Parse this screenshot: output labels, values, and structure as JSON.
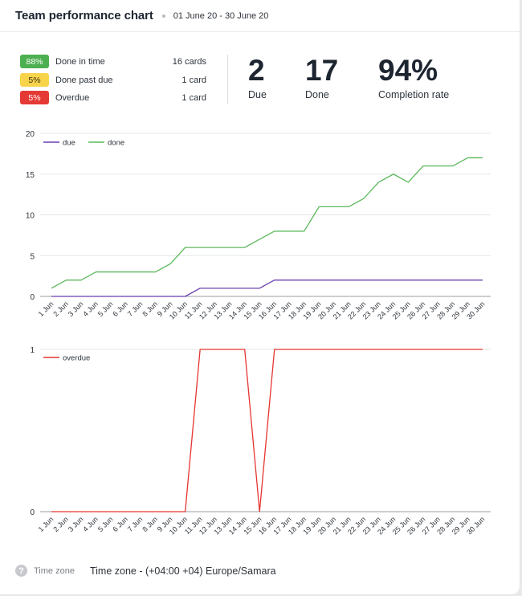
{
  "header": {
    "title": "Team performance chart",
    "date_range": "01 June 20 - 30 June 20"
  },
  "summary": {
    "rows": [
      {
        "percent": "88%",
        "label": "Done in time",
        "count": "16 cards",
        "bg": "#4caf50",
        "fg": "#ffffff"
      },
      {
        "percent": "5%",
        "label": "Done past due",
        "count": "1 card",
        "bg": "#f7d44a",
        "fg": "#3b3314"
      },
      {
        "percent": "5%",
        "label": "Overdue",
        "count": "1 card",
        "bg": "#e53935",
        "fg": "#ffffff"
      }
    ],
    "stats": [
      {
        "value": "2",
        "label": "Due"
      },
      {
        "value": "17",
        "label": "Done"
      },
      {
        "value": "94%",
        "label": "Completion rate"
      }
    ]
  },
  "chart_data": [
    {
      "type": "line",
      "categories": [
        "1 Jun",
        "2 Jun",
        "3 Jun",
        "4 Jun",
        "5 Jun",
        "6 Jun",
        "7 Jun",
        "8 Jun",
        "9 Jun",
        "10 Jun",
        "11 Jun",
        "12 Jun",
        "13 Jun",
        "14 Jun",
        "15 Jun",
        "16 Jun",
        "17 Jun",
        "18 Jun",
        "19 Jun",
        "20 Jun",
        "21 Jun",
        "22 Jun",
        "23 Jun",
        "24 Jun",
        "25 Jun",
        "26 Jun",
        "27 Jun",
        "28 Jun",
        "29 Jun",
        "30 Jun"
      ],
      "ylim": [
        0,
        20
      ],
      "yticks": [
        0,
        5,
        10,
        15,
        20
      ],
      "grid": true,
      "legend": "top-left",
      "series": [
        {
          "name": "due",
          "color": "#6a3fb0",
          "values": [
            0,
            0,
            0,
            0,
            0,
            0,
            0,
            0,
            0,
            0,
            1,
            1,
            1,
            1,
            1,
            2,
            2,
            2,
            2,
            2,
            2,
            2,
            2,
            2,
            2,
            2,
            2,
            2,
            2,
            2
          ]
        },
        {
          "name": "done",
          "color": "#5cb85c",
          "values": [
            1,
            2,
            2,
            3,
            3,
            3,
            3,
            3,
            4,
            6,
            6,
            6,
            6,
            6,
            7,
            8,
            8,
            8,
            11,
            11,
            11,
            12,
            14,
            15,
            14,
            16,
            16,
            16,
            17,
            17
          ]
        }
      ]
    },
    {
      "type": "line",
      "categories": [
        "1 Jun",
        "2 Jun",
        "3 Jun",
        "4 Jun",
        "5 Jun",
        "6 Jun",
        "7 Jun",
        "8 Jun",
        "9 Jun",
        "10 Jun",
        "11 Jun",
        "12 Jun",
        "13 Jun",
        "14 Jun",
        "15 Jun",
        "16 Jun",
        "17 Jun",
        "18 Jun",
        "19 Jun",
        "20 Jun",
        "21 Jun",
        "22 Jun",
        "23 Jun",
        "24 Jun",
        "25 Jun",
        "26 Jun",
        "27 Jun",
        "28 Jun",
        "29 Jun",
        "30 Jun"
      ],
      "ylim": [
        0,
        1
      ],
      "yticks": [
        0,
        1
      ],
      "grid": true,
      "legend": "top-left",
      "series": [
        {
          "name": "overdue",
          "color": "#e5342f",
          "values": [
            0,
            0,
            0,
            0,
            0,
            0,
            0,
            0,
            0,
            0,
            1,
            1,
            1,
            1,
            0,
            1,
            1,
            1,
            1,
            1,
            1,
            1,
            1,
            1,
            1,
            1,
            1,
            1,
            1,
            1
          ]
        }
      ]
    }
  ],
  "footer": {
    "help_glyph": "?",
    "timezone_label": "Time zone",
    "timezone_value": "Time zone - (+04:00 +04) Europe/Samara"
  }
}
